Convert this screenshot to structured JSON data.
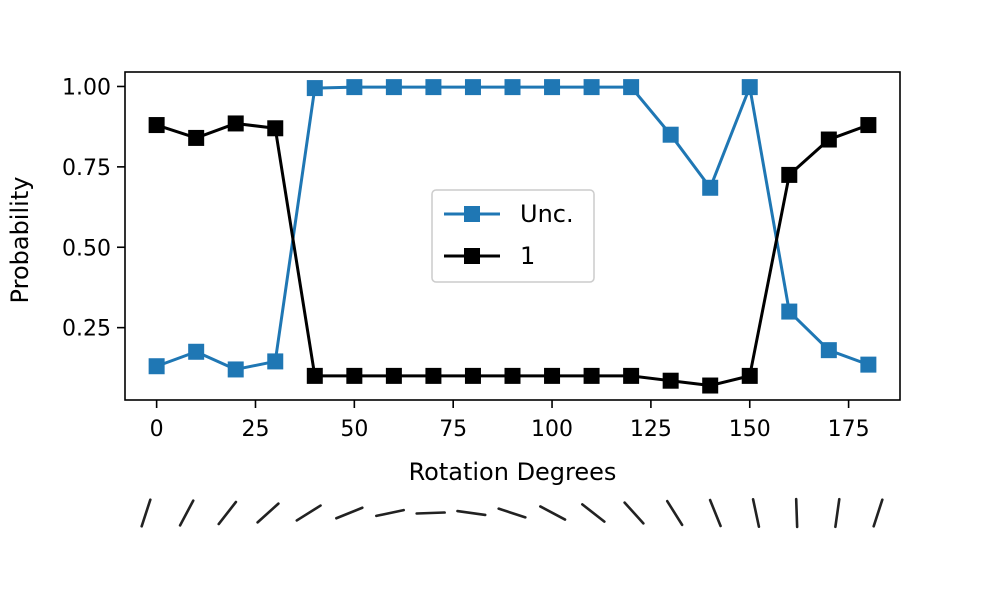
{
  "chart_data": {
    "type": "line",
    "xlabel": "Rotation Degrees",
    "ylabel": "Probability",
    "x": [
      0,
      10,
      20,
      30,
      40,
      50,
      60,
      70,
      80,
      90,
      100,
      110,
      120,
      130,
      140,
      150,
      160,
      170,
      180
    ],
    "xlim": [
      -8,
      188
    ],
    "ylim": [
      0.025,
      1.045
    ],
    "xticks": [
      0,
      25,
      50,
      75,
      100,
      125,
      150,
      175
    ],
    "xtick_labels": [
      "0",
      "25",
      "50",
      "75",
      "100",
      "125",
      "150",
      "175"
    ],
    "yticks": [
      0.25,
      0.5,
      0.75,
      1.0
    ],
    "ytick_labels": [
      "0.25",
      "0.50",
      "0.75",
      "1.00"
    ],
    "grid": false,
    "legend": {
      "position": "center"
    },
    "series": [
      {
        "name": "Unc.",
        "color": "#1f77b4",
        "marker": "square",
        "values": [
          0.13,
          0.175,
          0.12,
          0.145,
          0.995,
          0.998,
          0.998,
          0.998,
          0.998,
          0.998,
          0.998,
          0.998,
          0.998,
          0.85,
          0.685,
          0.998,
          0.3,
          0.18,
          0.135
        ]
      },
      {
        "name": "1",
        "color": "#000000",
        "marker": "square",
        "values": [
          0.88,
          0.84,
          0.885,
          0.87,
          0.1,
          0.1,
          0.1,
          0.1,
          0.1,
          0.1,
          0.1,
          0.1,
          0.1,
          0.085,
          0.07,
          0.1,
          0.725,
          0.835,
          0.88
        ]
      }
    ],
    "rotation_thumbnails": {
      "description_angles_deg": [
        0,
        10,
        20,
        30,
        40,
        50,
        60,
        70,
        80,
        90,
        100,
        110,
        120,
        130,
        140,
        150,
        160,
        170,
        180
      ],
      "color": "#222222"
    }
  }
}
